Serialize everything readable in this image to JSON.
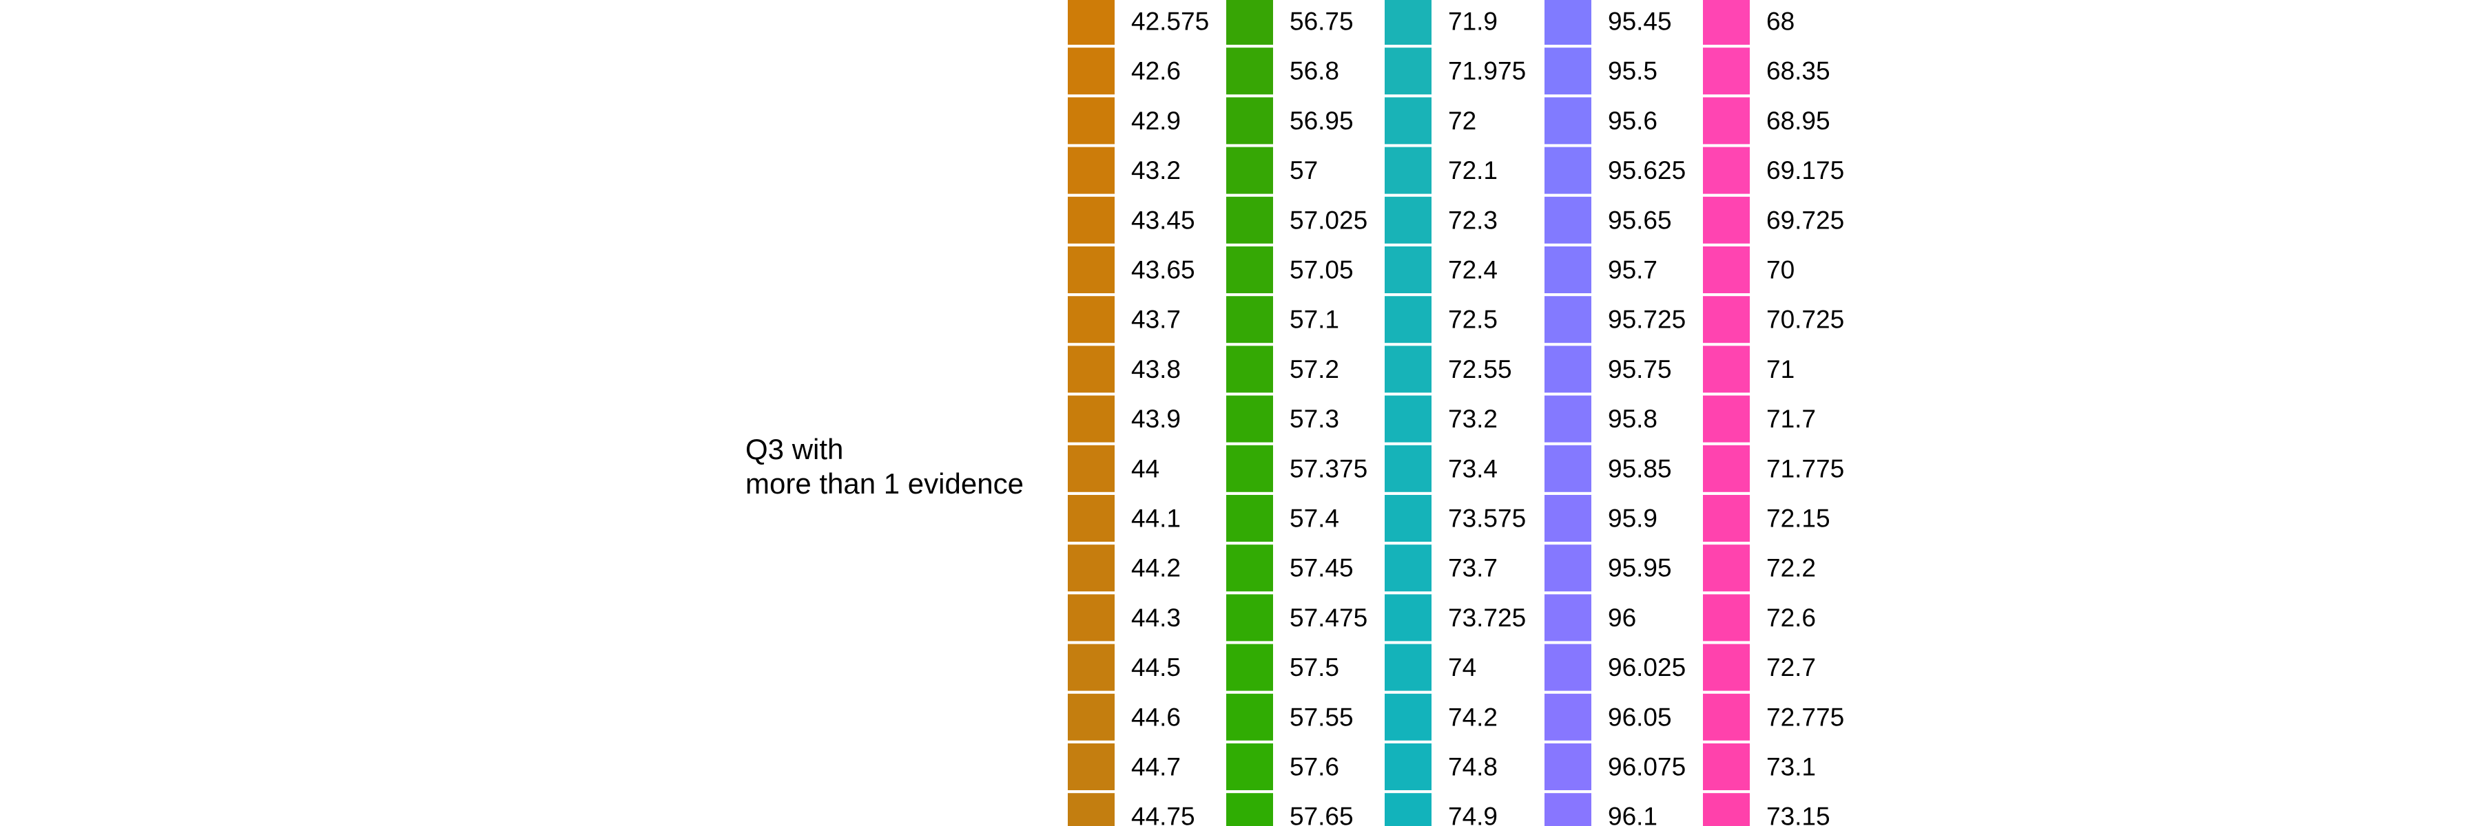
{
  "chart_data": {
    "type": "legend",
    "legend_title": [
      "Q3 with",
      "more than 1 evidence"
    ],
    "columns": [
      {
        "colors": [
          "#CE7C08",
          "#CD7C09",
          "#CC7C09",
          "#CC7C0A",
          "#CB7C0A",
          "#CA7D0B",
          "#CA7D0B",
          "#C97D0C",
          "#C87D0C",
          "#C87D0D",
          "#C77D0D",
          "#C67D0E",
          "#C67D0E",
          "#C57E0F",
          "#C47E0F",
          "#C47E10",
          "#C37E10"
        ],
        "labels": [
          "42.575",
          "42.6",
          "42.9",
          "43.2",
          "43.45",
          "43.65",
          "43.7",
          "43.8",
          "43.9",
          "44",
          "44.1",
          "44.2",
          "44.3",
          "44.5",
          "44.6",
          "44.7",
          "44.75"
        ]
      },
      {
        "colors": [
          "#37A505",
          "#37A605",
          "#36A605",
          "#36A705",
          "#35A705",
          "#35A805",
          "#34A805",
          "#34A904",
          "#33A904",
          "#33AA04",
          "#32AA04",
          "#32AB04",
          "#31AB04",
          "#31AC03",
          "#30AC03",
          "#30AD03",
          "#2FAD03"
        ],
        "labels": [
          "56.75",
          "56.8",
          "56.95",
          "57",
          "57.025",
          "57.05",
          "57.1",
          "57.2",
          "57.3",
          "57.375",
          "57.4",
          "57.45",
          "57.475",
          "57.5",
          "57.55",
          "57.6",
          "57.65"
        ]
      },
      {
        "colors": [
          "#1AB3B6",
          "#1AB3B6",
          "#19B3B7",
          "#19B3B7",
          "#18B3B7",
          "#18B3B8",
          "#17B3B8",
          "#17B3B8",
          "#16B3B9",
          "#16B3B9",
          "#15B3B9",
          "#15B3BA",
          "#14B3BA",
          "#14B3BA",
          "#13B3BB",
          "#13B3BB",
          "#12B3BB"
        ],
        "labels": [
          "71.9",
          "71.975",
          "72",
          "72.1",
          "72.3",
          "72.4",
          "72.5",
          "72.55",
          "73.2",
          "73.4",
          "73.575",
          "73.7",
          "73.725",
          "74",
          "74.2",
          "74.8",
          "74.9"
        ]
      },
      {
        "colors": [
          "#807BFF",
          "#807BFF",
          "#817BFF",
          "#817BFF",
          "#827AFF",
          "#827AFF",
          "#837AFF",
          "#8379FF",
          "#8479FF",
          "#8479FF",
          "#8578FF",
          "#8578FF",
          "#8678FF",
          "#8677FF",
          "#8777FF",
          "#8777FF",
          "#8876FF"
        ],
        "labels": [
          "95.45",
          "95.5",
          "95.6",
          "95.625",
          "95.65",
          "95.7",
          "95.725",
          "95.75",
          "95.8",
          "95.85",
          "95.9",
          "95.95",
          "96",
          "96.025",
          "96.05",
          "96.075",
          "96.1"
        ]
      },
      {
        "colors": [
          "#FF45B3",
          "#FF45B3",
          "#FF45B2",
          "#FF45B2",
          "#FF44B1",
          "#FF44B1",
          "#FF44B0",
          "#FF44B0",
          "#FF43AF",
          "#FF43AF",
          "#FF43AE",
          "#FF43AE",
          "#FF42AD",
          "#FF42AD",
          "#FF42AC",
          "#FF42AC",
          "#FF41AB"
        ],
        "labels": [
          "68",
          "68.35",
          "68.95",
          "69.175",
          "69.725",
          "70",
          "70.725",
          "71",
          "71.7",
          "71.775",
          "72.15",
          "72.2",
          "72.6",
          "72.7",
          "72.775",
          "73.1",
          "73.15"
        ]
      }
    ]
  }
}
